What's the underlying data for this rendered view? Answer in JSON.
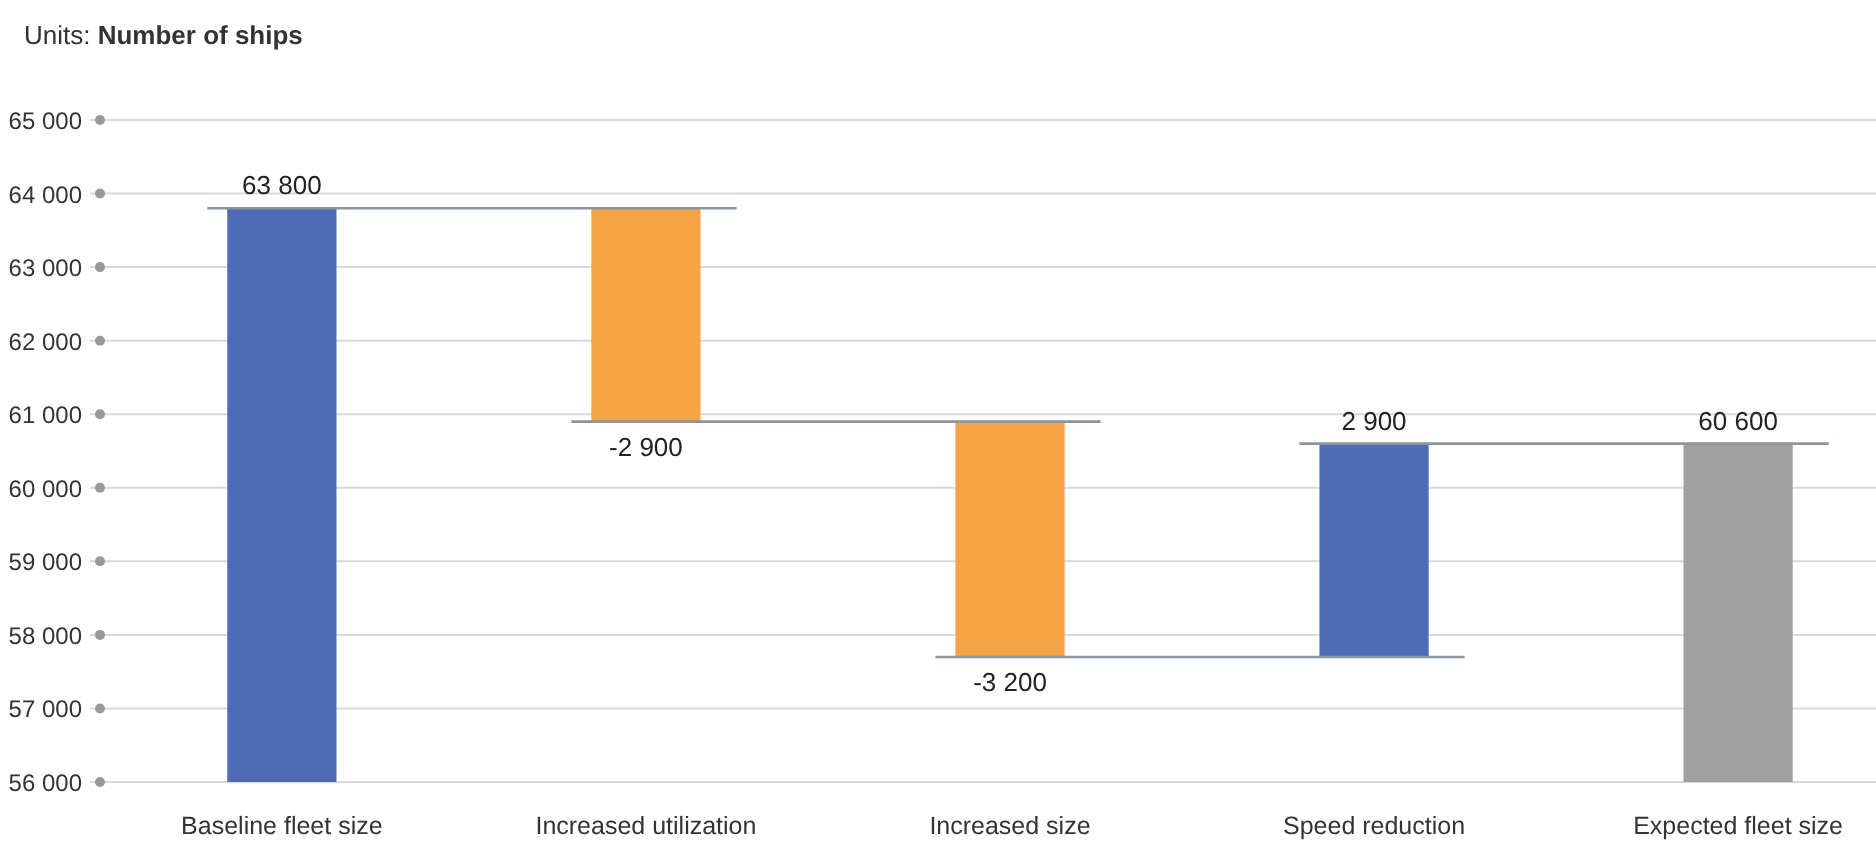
{
  "chart_data": {
    "type": "bar",
    "title": "Units: Number of ships",
    "categories": [
      "Baseline fleet size",
      "Increased utilization",
      "Increased size",
      "Speed reduction",
      "Expected fleet size"
    ],
    "values": [
      63800,
      -2900,
      -3200,
      2900,
      60600
    ],
    "base": [
      null,
      63800,
      60900,
      57700,
      null
    ],
    "colors": [
      "#4f6bb5",
      "#f5a443",
      "#f5a443",
      "#4f6bb5",
      "#a0a0a0"
    ],
    "value_labels": [
      "63 800",
      "-2 900",
      "-3 200",
      "2 900",
      "60 600"
    ],
    "ylim": [
      56000,
      65000
    ],
    "yticks": [
      {
        "value": 56000,
        "label": "56 000"
      },
      {
        "value": 57000,
        "label": "57 000"
      },
      {
        "value": 58000,
        "label": "58 000"
      },
      {
        "value": 59000,
        "label": "59 000"
      },
      {
        "value": 60000,
        "label": "60 000"
      },
      {
        "value": 61000,
        "label": "61 000"
      },
      {
        "value": 62000,
        "label": "62 000"
      },
      {
        "value": 63000,
        "label": "63 000"
      },
      {
        "value": 64000,
        "label": "64 000"
      },
      {
        "value": 65000,
        "label": "65 000"
      }
    ],
    "grid": "y"
  }
}
